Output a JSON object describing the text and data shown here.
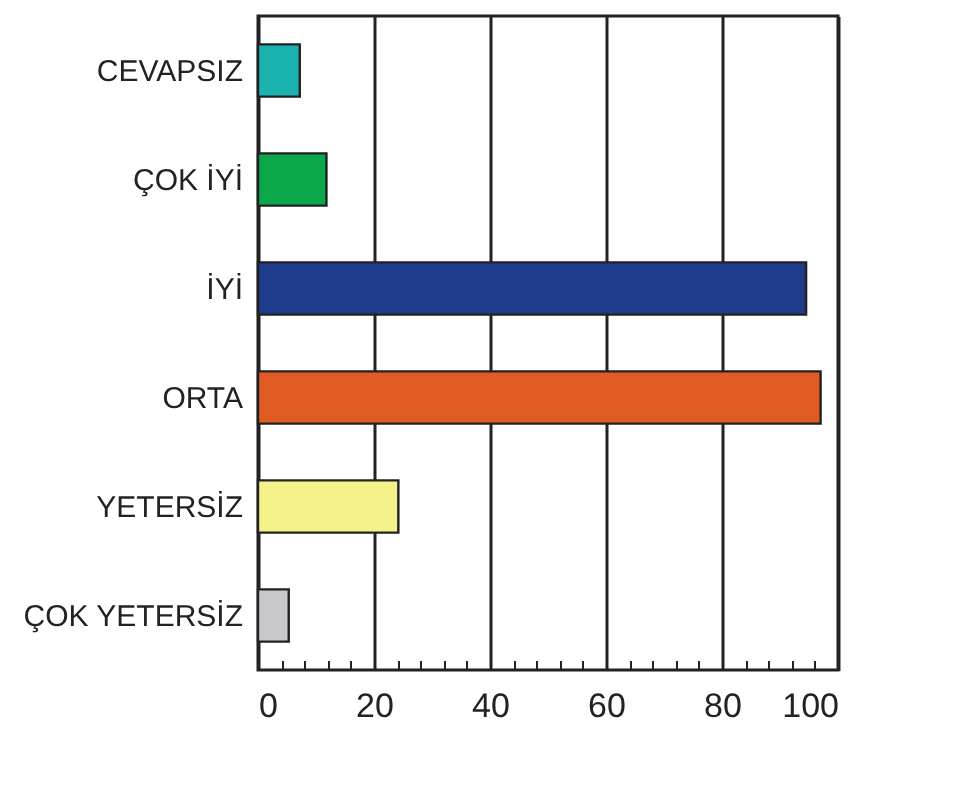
{
  "chart_data": {
    "type": "bar",
    "orientation": "horizontal",
    "categories": [
      "CEVAPSIZ",
      "ÇOK İYİ",
      "İYİ",
      "ORTA",
      "YETERSİZ",
      "ÇOK YETERSİZ"
    ],
    "values": [
      7.2,
      11.8,
      94.5,
      97,
      24.2,
      5.3
    ],
    "colors": [
      "#1bb3b0",
      "#0aa84a",
      "#1f3b8c",
      "#e05a23",
      "#f5f28a",
      "#c8c8cc"
    ],
    "xlim": [
      0,
      100
    ],
    "xticks": [
      0,
      {
        "value": 4,
        "label": null
      },
      {
        "value": 8,
        "label": null
      },
      {
        "value": 12,
        "label": null
      },
      {
        "value": 16,
        "label": null
      },
      20,
      {
        "value": 24,
        "label": null
      },
      {
        "value": 28,
        "label": null
      },
      {
        "value": 32,
        "label": null
      },
      {
        "value": 36,
        "label": null
      },
      40,
      {
        "value": 44,
        "label": null
      },
      {
        "value": 48,
        "label": null
      },
      {
        "value": 52,
        "label": null
      },
      {
        "value": 56,
        "label": null
      },
      60,
      {
        "value": 64,
        "label": null
      },
      {
        "value": 68,
        "label": null
      },
      {
        "value": 72,
        "label": null
      },
      {
        "value": 76,
        "label": null
      },
      80,
      {
        "value": 84,
        "label": null
      },
      {
        "value": 88,
        "label": null
      },
      {
        "value": 92,
        "label": null
      },
      {
        "value": 96,
        "label": null
      },
      100
    ],
    "grid": "x"
  }
}
